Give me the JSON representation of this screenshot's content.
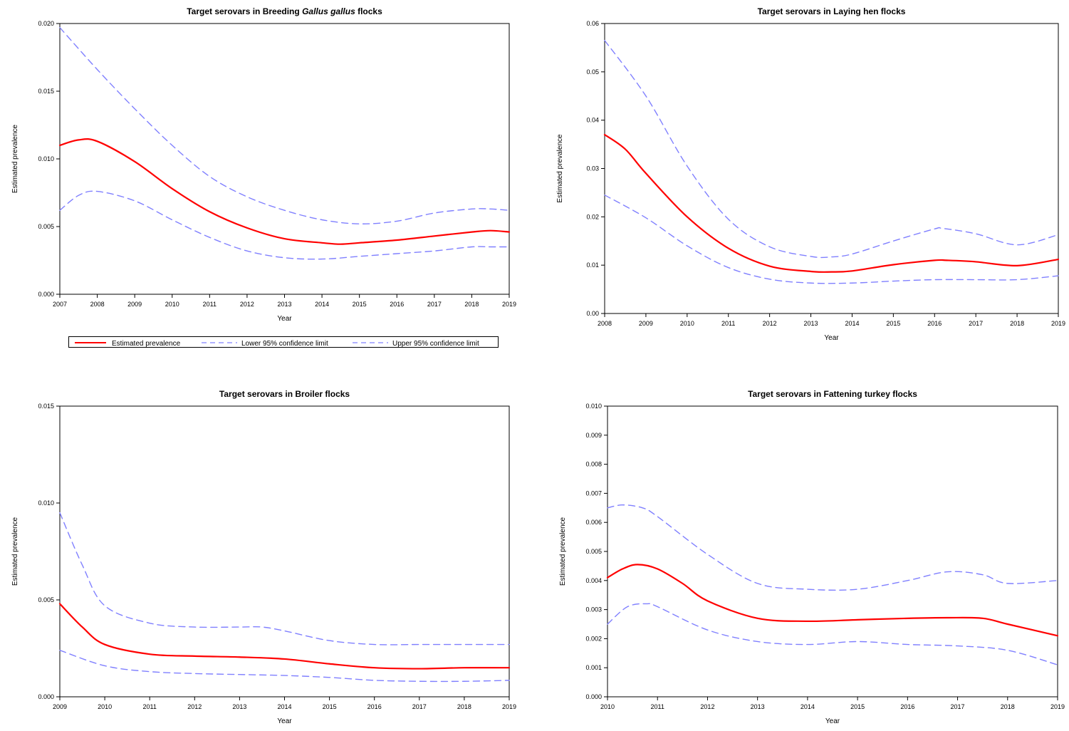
{
  "legend": {
    "entries": [
      {
        "label": "Estimated prevalence",
        "style": "solid",
        "color": "#ff0000"
      },
      {
        "label": "Lower 95% confidence limit",
        "style": "dashed",
        "color": "#8080ff"
      },
      {
        "label": "Upper 95% confidence limit",
        "style": "dashed",
        "color": "#8080ff"
      }
    ]
  },
  "chart_data": [
    {
      "type": "line",
      "title": "Target serovars in Breeding Gallus gallus flocks",
      "title_parts": [
        {
          "text": "Target serovars in Breeding ",
          "italic": false
        },
        {
          "text": "Gallus gallus",
          "italic": true
        },
        {
          "text": " flocks",
          "italic": false
        }
      ],
      "xlabel": "Year",
      "ylabel": "Estimated prevalence",
      "xlim": [
        2007,
        2019
      ],
      "ylim": [
        0,
        0.02
      ],
      "xticks": [
        2007,
        2008,
        2009,
        2010,
        2011,
        2012,
        2013,
        2014,
        2015,
        2016,
        2017,
        2018,
        2019
      ],
      "yticks": [
        0.0,
        0.005,
        0.01,
        0.015,
        0.02
      ],
      "ytick_labels": [
        "0.000",
        "0.005",
        "0.010",
        "0.015",
        "0.020"
      ],
      "grid": false,
      "series": [
        {
          "name": "Estimated prevalence",
          "color": "#ff0000",
          "x": [
            2007,
            2007.5,
            2008,
            2009,
            2010,
            2011,
            2012,
            2013,
            2014,
            2014.5,
            2015,
            2016,
            2017,
            2018,
            2018.5,
            2019
          ],
          "values": [
            0.011,
            0.0114,
            0.0113,
            0.0098,
            0.0078,
            0.0061,
            0.0049,
            0.0041,
            0.0038,
            0.0037,
            0.0038,
            0.004,
            0.0043,
            0.0046,
            0.0047,
            0.0046
          ]
        },
        {
          "name": "Lower 95% confidence limit",
          "color": "#8080ff",
          "x": [
            2007,
            2007.5,
            2008,
            2009,
            2010,
            2011,
            2012,
            2013,
            2014,
            2015,
            2016,
            2017,
            2018,
            2018.5,
            2019
          ],
          "values": [
            0.0062,
            0.0073,
            0.0076,
            0.0069,
            0.0055,
            0.0042,
            0.0032,
            0.0027,
            0.0026,
            0.0028,
            0.003,
            0.0032,
            0.0035,
            0.0035,
            0.0035
          ]
        },
        {
          "name": "Upper 95% confidence limit",
          "color": "#8080ff",
          "x": [
            2007,
            2008,
            2009,
            2010,
            2011,
            2012,
            2013,
            2014,
            2015,
            2016,
            2017,
            2018,
            2018.5,
            2019
          ],
          "values": [
            0.0197,
            0.0166,
            0.0137,
            0.011,
            0.0087,
            0.0072,
            0.0062,
            0.0055,
            0.0052,
            0.0054,
            0.006,
            0.0063,
            0.0063,
            0.0062
          ]
        }
      ]
    },
    {
      "type": "line",
      "title": "Target serovars in Laying hen flocks",
      "title_parts": [
        {
          "text": "Target serovars in Laying hen flocks",
          "italic": false
        }
      ],
      "xlabel": "Year",
      "ylabel": "Estimated prevalence",
      "xlim": [
        2008,
        2019
      ],
      "ylim": [
        0,
        0.06
      ],
      "xticks": [
        2008,
        2009,
        2010,
        2011,
        2012,
        2013,
        2014,
        2015,
        2016,
        2017,
        2018,
        2019
      ],
      "yticks": [
        0.0,
        0.01,
        0.02,
        0.03,
        0.04,
        0.05,
        0.06
      ],
      "ytick_labels": [
        "0.00",
        "0.01",
        "0.02",
        "0.03",
        "0.04",
        "0.05",
        "0.06"
      ],
      "grid": false,
      "series": [
        {
          "name": "Estimated prevalence",
          "color": "#ff0000",
          "x": [
            2008,
            2008.5,
            2009,
            2010,
            2011,
            2012,
            2013,
            2013.5,
            2014,
            2015,
            2016,
            2016.3,
            2017,
            2018,
            2019
          ],
          "values": [
            0.037,
            0.034,
            0.029,
            0.02,
            0.0135,
            0.0098,
            0.0087,
            0.0086,
            0.0088,
            0.0101,
            0.011,
            0.011,
            0.0107,
            0.0099,
            0.0112
          ]
        },
        {
          "name": "Lower 95% confidence limit",
          "color": "#8080ff",
          "x": [
            2008,
            2009,
            2010,
            2011,
            2012,
            2013,
            2014,
            2015,
            2016,
            2017,
            2018,
            2019
          ],
          "values": [
            0.0245,
            0.0198,
            0.014,
            0.0095,
            0.0071,
            0.0063,
            0.0063,
            0.0067,
            0.007,
            0.007,
            0.007,
            0.0078
          ]
        },
        {
          "name": "Upper 95% confidence limit",
          "color": "#8080ff",
          "x": [
            2008,
            2009,
            2010,
            2011,
            2012,
            2013,
            2013.5,
            2014,
            2015,
            2016,
            2016.2,
            2017,
            2018,
            2019
          ],
          "values": [
            0.0565,
            0.045,
            0.0305,
            0.0195,
            0.0138,
            0.0118,
            0.0117,
            0.0123,
            0.015,
            0.0175,
            0.0176,
            0.0165,
            0.0142,
            0.0163
          ]
        }
      ]
    },
    {
      "type": "line",
      "title": "Target serovars in Broiler flocks",
      "title_parts": [
        {
          "text": "Target serovars in Broiler flocks",
          "italic": false
        }
      ],
      "xlabel": "Year",
      "ylabel": "Estimated prevalence",
      "xlim": [
        2009,
        2019
      ],
      "ylim": [
        0,
        0.015
      ],
      "xticks": [
        2009,
        2010,
        2011,
        2012,
        2013,
        2014,
        2015,
        2016,
        2017,
        2018,
        2019
      ],
      "yticks": [
        0.0,
        0.005,
        0.01,
        0.015
      ],
      "ytick_labels": [
        "0.000",
        "0.005",
        "0.010",
        "0.015"
      ],
      "grid": false,
      "series": [
        {
          "name": "Estimated prevalence",
          "color": "#ff0000",
          "x": [
            2009,
            2009.5,
            2010,
            2011,
            2012,
            2013,
            2014,
            2015,
            2016,
            2017,
            2018,
            2019
          ],
          "values": [
            0.0048,
            0.0036,
            0.0027,
            0.0022,
            0.0021,
            0.00205,
            0.00195,
            0.0017,
            0.0015,
            0.00145,
            0.0015,
            0.0015
          ]
        },
        {
          "name": "Lower 95% confidence limit",
          "color": "#8080ff",
          "x": [
            2009,
            2010,
            2011,
            2012,
            2013,
            2014,
            2015,
            2016,
            2017,
            2018,
            2019
          ],
          "values": [
            0.0024,
            0.0016,
            0.0013,
            0.0012,
            0.00115,
            0.0011,
            0.001,
            0.00085,
            0.0008,
            0.0008,
            0.00085
          ]
        },
        {
          "name": "Upper 95% confidence limit",
          "color": "#8080ff",
          "x": [
            2009,
            2009.5,
            2010,
            2011,
            2012,
            2013,
            2013.5,
            2014,
            2015,
            2016,
            2017,
            2018,
            2019
          ],
          "values": [
            0.0095,
            0.0068,
            0.0047,
            0.0038,
            0.0036,
            0.0036,
            0.0036,
            0.0034,
            0.0029,
            0.0027,
            0.0027,
            0.0027,
            0.0027
          ]
        }
      ]
    },
    {
      "type": "line",
      "title": "Target serovars in Fattening turkey flocks",
      "title_parts": [
        {
          "text": "Target serovars in Fattening turkey flocks",
          "italic": false
        }
      ],
      "xlabel": "Year",
      "ylabel": "Estimated prevalence",
      "xlim": [
        2010,
        2019
      ],
      "ylim": [
        0,
        0.01
      ],
      "xticks": [
        2010,
        2011,
        2012,
        2013,
        2014,
        2015,
        2016,
        2017,
        2018,
        2019
      ],
      "yticks": [
        0.0,
        0.001,
        0.002,
        0.003,
        0.004,
        0.005,
        0.006,
        0.007,
        0.008,
        0.009,
        0.01
      ],
      "ytick_labels": [
        "0.000",
        "0.001",
        "0.002",
        "0.003",
        "0.004",
        "0.005",
        "0.006",
        "0.007",
        "0.008",
        "0.009",
        "0.010"
      ],
      "grid": false,
      "series": [
        {
          "name": "Estimated prevalence",
          "color": "#ff0000",
          "x": [
            2010,
            2010.3,
            2010.6,
            2011,
            2011.5,
            2012,
            2013,
            2014,
            2015,
            2016,
            2016.8,
            2017.5,
            2018,
            2019
          ],
          "values": [
            0.0041,
            0.0044,
            0.00455,
            0.0044,
            0.0039,
            0.0033,
            0.0027,
            0.0026,
            0.00265,
            0.0027,
            0.00272,
            0.0027,
            0.0025,
            0.0021
          ]
        },
        {
          "name": "Lower 95% confidence limit",
          "color": "#8080ff",
          "x": [
            2010,
            2010.4,
            2010.8,
            2011,
            2012,
            2013,
            2014,
            2015,
            2016,
            2017,
            2018,
            2019
          ],
          "values": [
            0.0025,
            0.0031,
            0.0032,
            0.0031,
            0.0023,
            0.0019,
            0.0018,
            0.0019,
            0.0018,
            0.00175,
            0.0016,
            0.0011
          ]
        },
        {
          "name": "Upper 95% confidence limit",
          "color": "#8080ff",
          "x": [
            2010,
            2010.3,
            2010.7,
            2011,
            2012,
            2013,
            2014,
            2015,
            2016,
            2016.8,
            2017.5,
            2018,
            2019
          ],
          "values": [
            0.0065,
            0.0066,
            0.0065,
            0.0062,
            0.0049,
            0.0039,
            0.0037,
            0.0037,
            0.004,
            0.0043,
            0.0042,
            0.0039,
            0.004
          ]
        }
      ]
    }
  ]
}
